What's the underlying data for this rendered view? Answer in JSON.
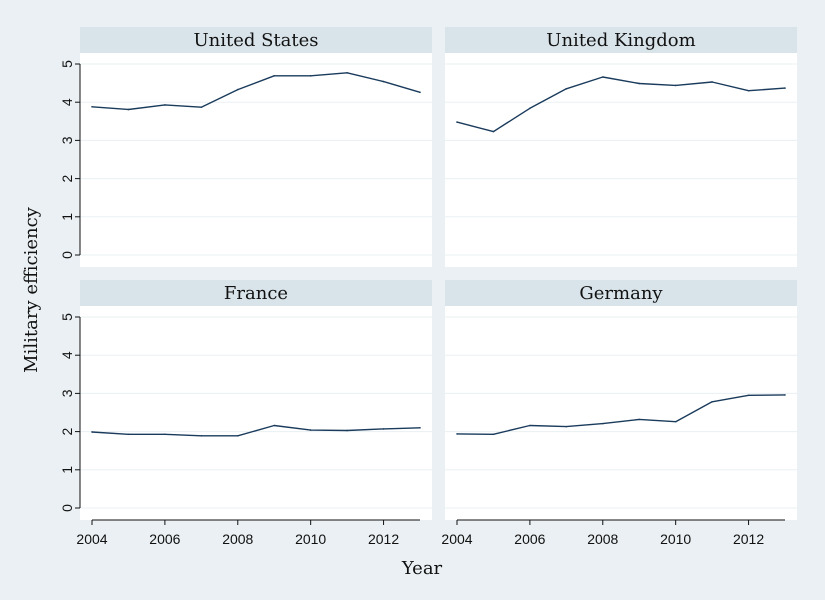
{
  "chart_data": {
    "type": "line",
    "ylabel": "Military efficiency",
    "xlabel": "Year",
    "xlim": [
      2004,
      2013
    ],
    "ylim": [
      0,
      5
    ],
    "x_ticks": [
      2004,
      2006,
      2008,
      2010,
      2012
    ],
    "y_ticks": [
      0,
      1,
      2,
      3,
      4,
      5
    ],
    "grid": true,
    "colors": {
      "background": "#eaf0f3",
      "panel": "#ffffff",
      "strip": "#d9e4ea",
      "grid": "#eaf0f3",
      "line": "#1a3b5c"
    },
    "panels": [
      {
        "title": "United States",
        "x": [
          2004,
          2005,
          2006,
          2007,
          2008,
          2009,
          2010,
          2011,
          2012,
          2013
        ],
        "values": [
          3.88,
          3.81,
          3.93,
          3.87,
          4.33,
          4.69,
          4.69,
          4.77,
          4.54,
          4.26
        ]
      },
      {
        "title": "United Kingdom",
        "x": [
          2004,
          2005,
          2006,
          2007,
          2008,
          2009,
          2010,
          2011,
          2012,
          2013
        ],
        "values": [
          3.48,
          3.23,
          3.84,
          4.35,
          4.66,
          4.49,
          4.44,
          4.53,
          4.3,
          4.37
        ]
      },
      {
        "title": "France",
        "x": [
          2004,
          2005,
          2006,
          2007,
          2008,
          2009,
          2010,
          2011,
          2012,
          2013
        ],
        "values": [
          1.99,
          1.93,
          1.93,
          1.89,
          1.89,
          2.16,
          2.04,
          2.03,
          2.07,
          2.1
        ]
      },
      {
        "title": "Germany",
        "x": [
          2004,
          2005,
          2006,
          2007,
          2008,
          2009,
          2010,
          2011,
          2012,
          2013
        ],
        "values": [
          1.94,
          1.93,
          2.16,
          2.13,
          2.21,
          2.32,
          2.26,
          2.78,
          2.95,
          2.96
        ]
      }
    ]
  }
}
